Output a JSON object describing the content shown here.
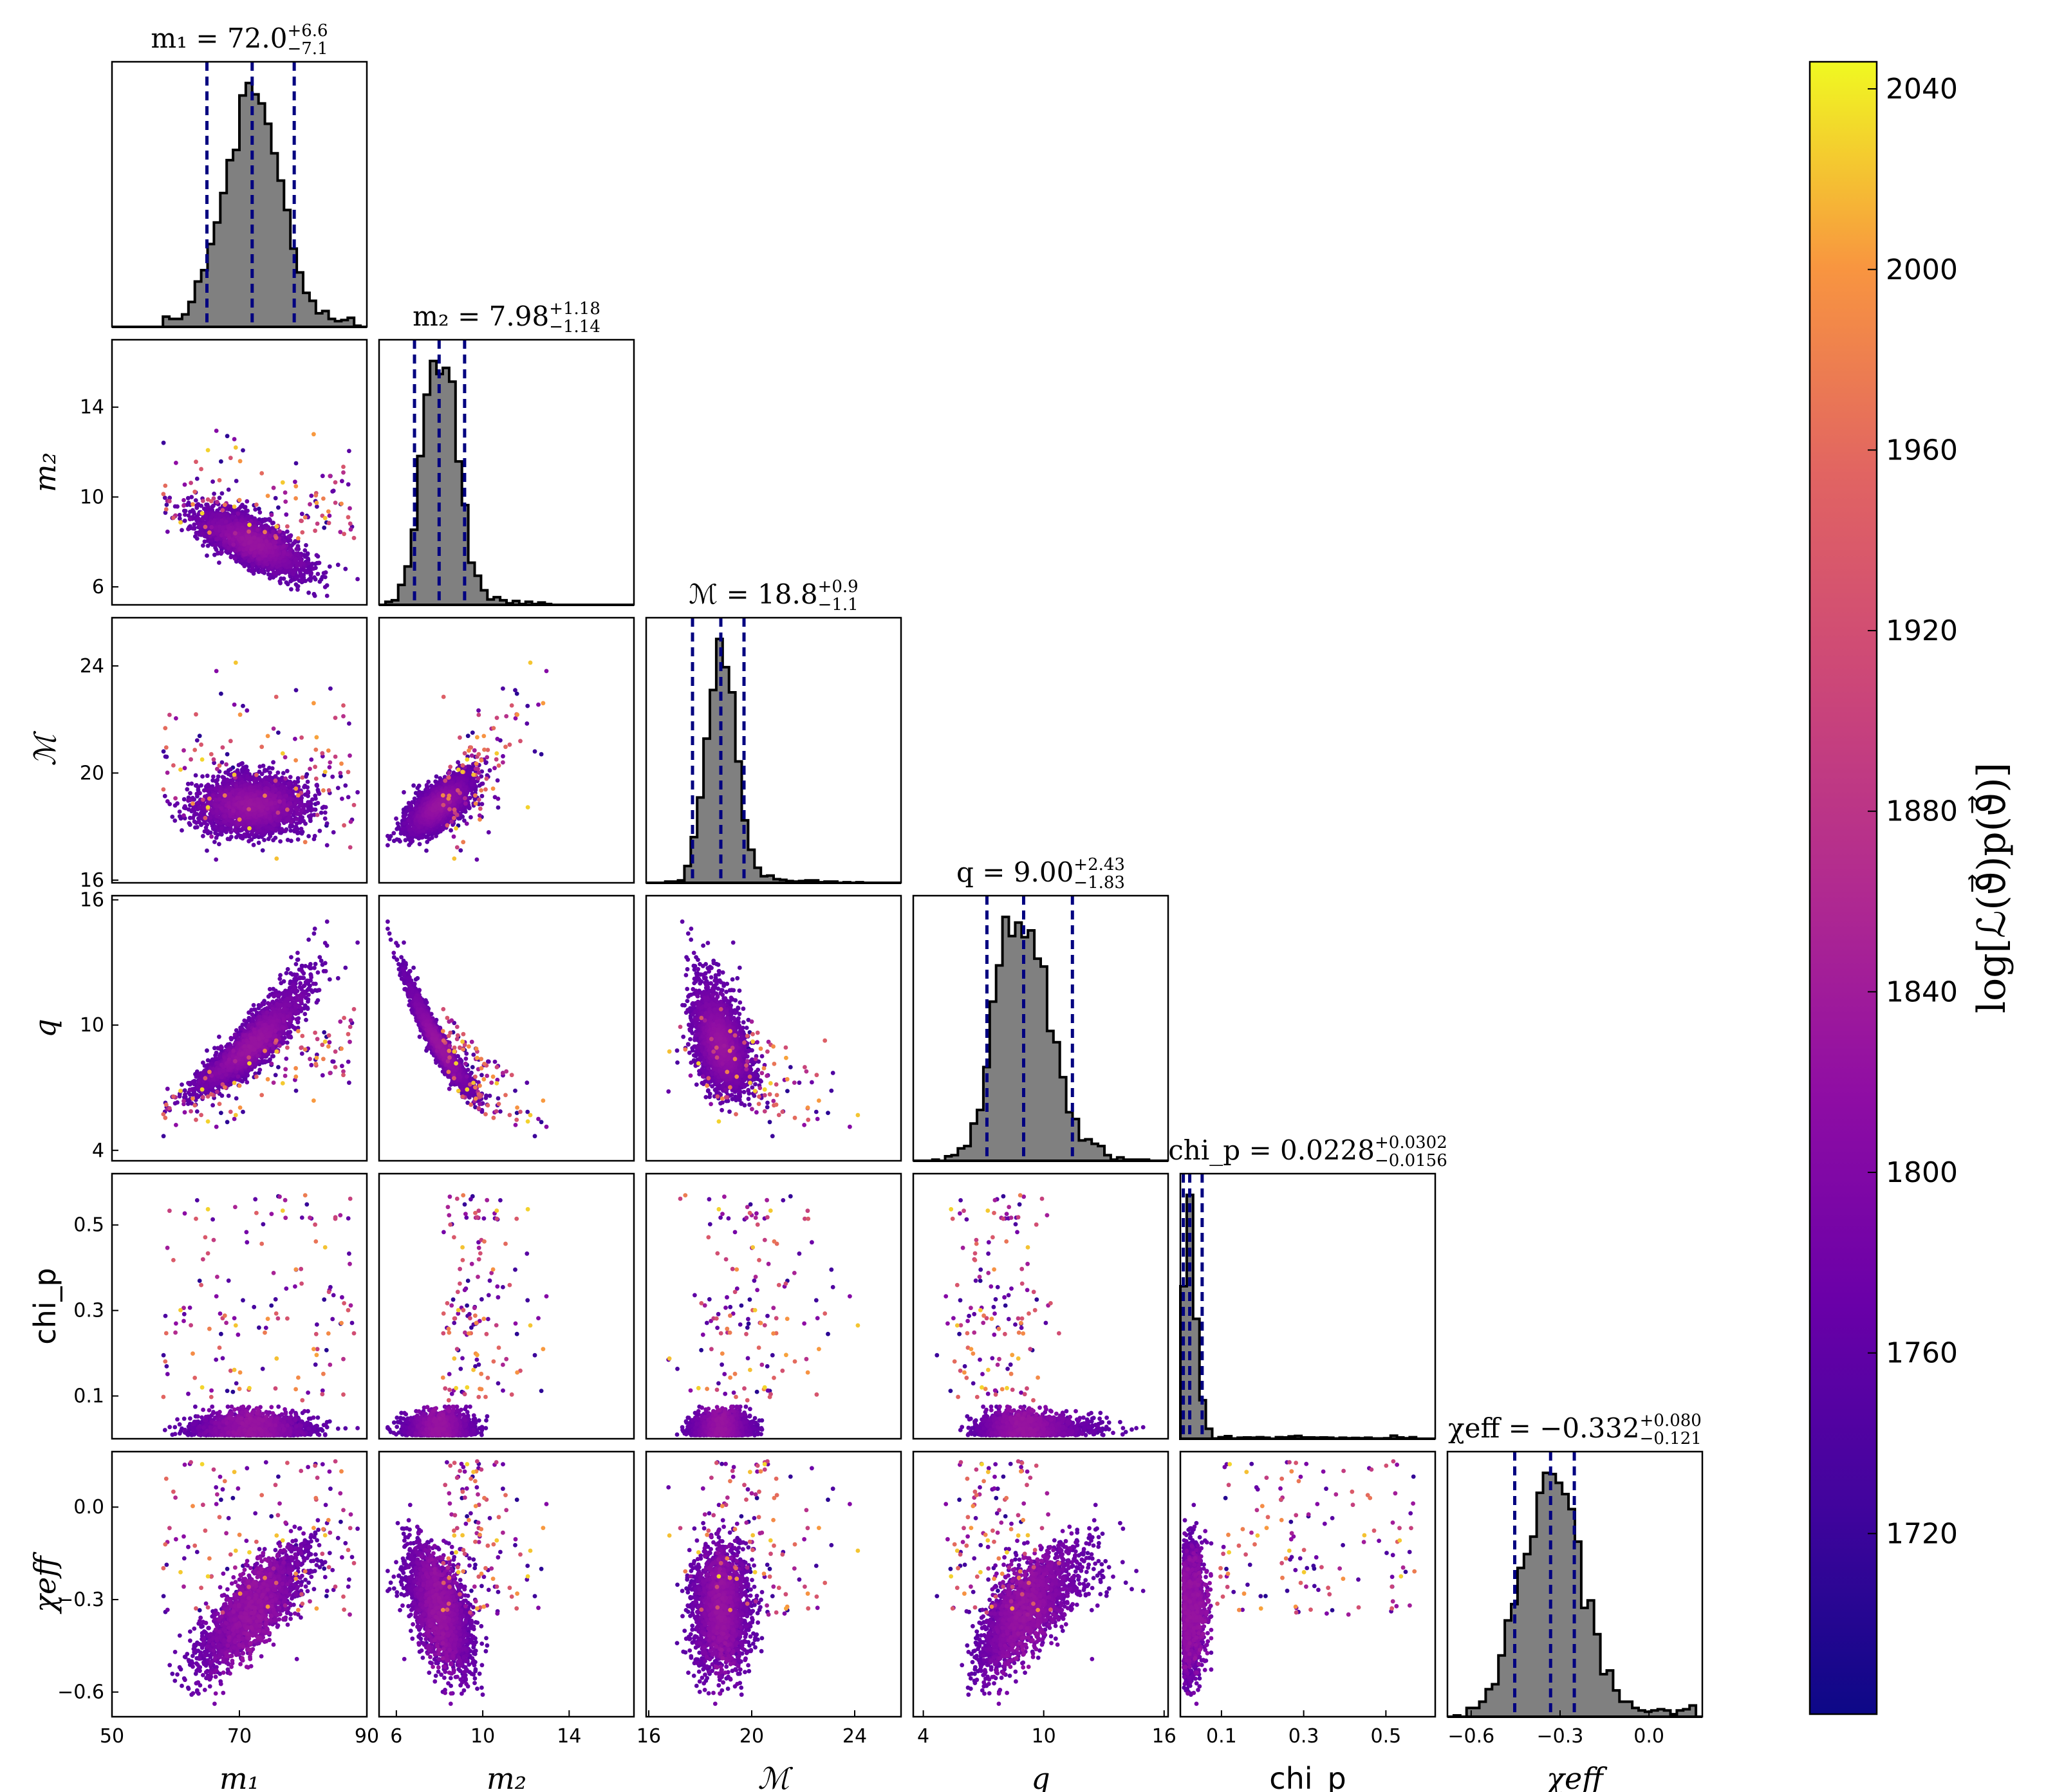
{
  "chart_data": {
    "type": "scatter",
    "subtype": "corner-plot",
    "parameters": [
      {
        "key": "m1",
        "label": "m₁",
        "ticks": [
          50,
          70,
          90
        ],
        "range": [
          50,
          90
        ],
        "title": {
          "lhs": "m₁",
          "median": "72.0",
          "plus": "+6.6",
          "minus": "−7.1"
        },
        "median": 72.0,
        "plus": 6.6,
        "minus": 7.1
      },
      {
        "key": "m2",
        "label": "m₂",
        "ticks": [
          6,
          10,
          14
        ],
        "range": [
          5.2,
          17
        ],
        "title": {
          "lhs": "m₂",
          "median": "7.98",
          "plus": "+1.18",
          "minus": "−1.14"
        },
        "median": 7.98,
        "plus": 1.18,
        "minus": 1.14
      },
      {
        "key": "Mc",
        "label": "ℳ",
        "ticks": [
          16,
          20,
          24
        ],
        "range": [
          15.9,
          25.8
        ],
        "title": {
          "lhs": "ℳ",
          "median": "18.8",
          "plus": "+0.9",
          "minus": "−1.1"
        },
        "median": 18.8,
        "plus": 0.9,
        "minus": 1.1
      },
      {
        "key": "q",
        "label": "q",
        "ticks": [
          4,
          10,
          16
        ],
        "range": [
          3.5,
          16.2
        ],
        "title": {
          "lhs": "q",
          "median": "9.00",
          "plus": "+2.43",
          "minus": "−1.83"
        },
        "median": 9.0,
        "plus": 2.43,
        "minus": 1.83
      },
      {
        "key": "chi_p",
        "label": "chi_p",
        "ticks": [
          0.1,
          0.3,
          0.5
        ],
        "range": [
          0.0,
          0.62
        ],
        "title": {
          "lhs": "chi_p",
          "median": "0.0228",
          "plus": "+0.0302",
          "minus": "−0.0156"
        },
        "median": 0.0228,
        "plus": 0.0302,
        "minus": 0.0156
      },
      {
        "key": "chi_eff",
        "label": "χeff",
        "ticks": [
          -0.6,
          -0.3,
          0.0
        ],
        "range": [
          -0.68,
          0.18
        ],
        "title": {
          "lhs": "χeff",
          "median": "−0.332",
          "plus": "+0.080",
          "minus": "−0.121"
        },
        "median": -0.332,
        "plus": 0.08,
        "minus": 0.121
      }
    ],
    "tick_labels": {
      "m1": [
        "50",
        "70",
        "90"
      ],
      "m2": [
        "6",
        "10",
        "14"
      ],
      "Mc": [
        "16",
        "20",
        "24"
      ],
      "q": [
        "4",
        "10",
        "16"
      ],
      "chi_p": [
        "0.1",
        "0.3",
        "0.5"
      ],
      "chi_eff": [
        "−0.6",
        "−0.3",
        "0.0"
      ]
    },
    "colorbar": {
      "label": "log[ℒ(ϑ⃗)p(ϑ⃗)]",
      "ticks": [
        1720,
        1760,
        1800,
        1840,
        1880,
        1920,
        1960,
        2000,
        2040
      ],
      "tick_labels": [
        "1720",
        "1760",
        "1800",
        "1840",
        "1880",
        "1920",
        "1960",
        "2000",
        "2040"
      ],
      "range": [
        1680,
        2046
      ],
      "colormap": "plasma"
    },
    "style": {
      "hist_fill": "#808080",
      "hist_edge": "#000000",
      "quantile_line": "#000080",
      "grid": false
    }
  }
}
